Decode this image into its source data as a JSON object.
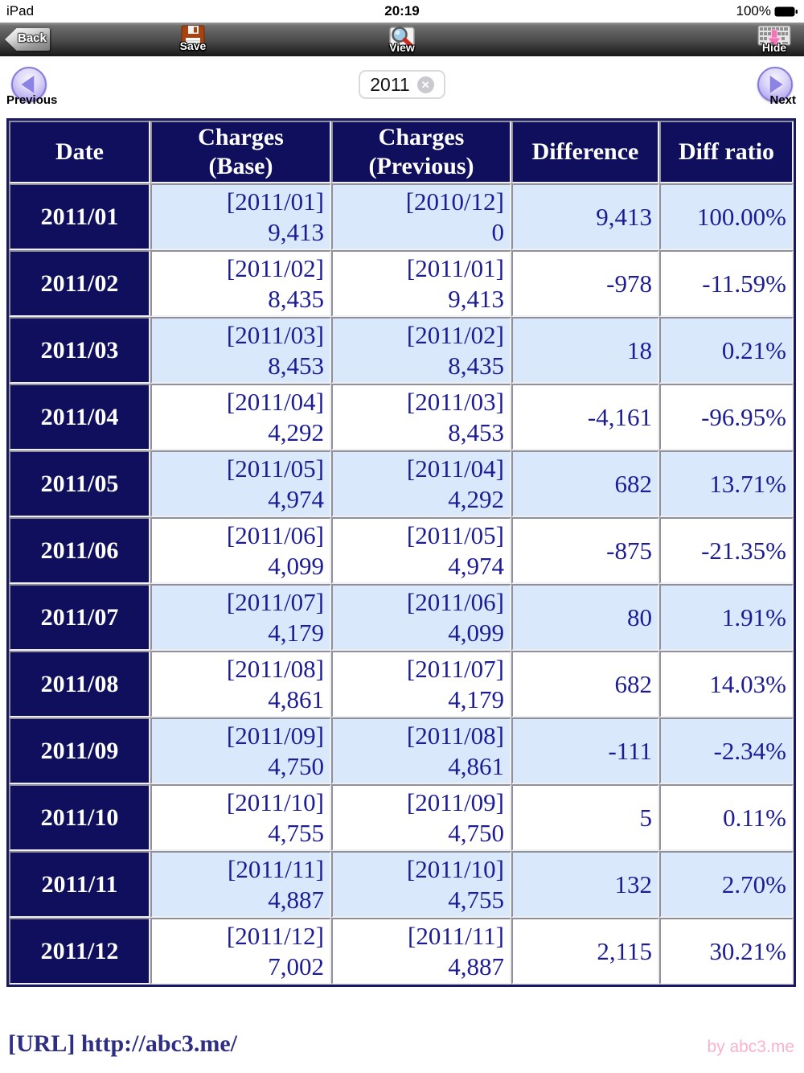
{
  "status_bar": {
    "carrier": "iPad",
    "time": "20:19",
    "battery_percent": "100%"
  },
  "toolbar": {
    "back_label": "Back",
    "save_label": "Save",
    "view_label": "View",
    "hide_label": "Hide"
  },
  "pager": {
    "previous_label": "Previous",
    "next_label": "Next",
    "year_value": "2011",
    "clear_glyph": "✕"
  },
  "table": {
    "columns": [
      {
        "line1": "Date",
        "line2": ""
      },
      {
        "line1": "Charges",
        "line2": "(Base)"
      },
      {
        "line1": "Charges",
        "line2": "(Previous)"
      },
      {
        "line1": "Difference",
        "line2": ""
      },
      {
        "line1": "Diff ratio",
        "line2": ""
      }
    ],
    "rows": [
      {
        "date": "2011/01",
        "base_tag": "[2011/01]",
        "base": "9,413",
        "prev_tag": "[2010/12]",
        "prev": "0",
        "diff": "9,413",
        "ratio": "100.00%"
      },
      {
        "date": "2011/02",
        "base_tag": "[2011/02]",
        "base": "8,435",
        "prev_tag": "[2011/01]",
        "prev": "9,413",
        "diff": "-978",
        "ratio": "-11.59%"
      },
      {
        "date": "2011/03",
        "base_tag": "[2011/03]",
        "base": "8,453",
        "prev_tag": "[2011/02]",
        "prev": "8,435",
        "diff": "18",
        "ratio": "0.21%"
      },
      {
        "date": "2011/04",
        "base_tag": "[2011/04]",
        "base": "4,292",
        "prev_tag": "[2011/03]",
        "prev": "8,453",
        "diff": "-4,161",
        "ratio": "-96.95%"
      },
      {
        "date": "2011/05",
        "base_tag": "[2011/05]",
        "base": "4,974",
        "prev_tag": "[2011/04]",
        "prev": "4,292",
        "diff": "682",
        "ratio": "13.71%"
      },
      {
        "date": "2011/06",
        "base_tag": "[2011/06]",
        "base": "4,099",
        "prev_tag": "[2011/05]",
        "prev": "4,974",
        "diff": "-875",
        "ratio": "-21.35%"
      },
      {
        "date": "2011/07",
        "base_tag": "[2011/07]",
        "base": "4,179",
        "prev_tag": "[2011/06]",
        "prev": "4,099",
        "diff": "80",
        "ratio": "1.91%"
      },
      {
        "date": "2011/08",
        "base_tag": "[2011/08]",
        "base": "4,861",
        "prev_tag": "[2011/07]",
        "prev": "4,179",
        "diff": "682",
        "ratio": "14.03%"
      },
      {
        "date": "2011/09",
        "base_tag": "[2011/09]",
        "base": "4,750",
        "prev_tag": "[2011/08]",
        "prev": "4,861",
        "diff": "-111",
        "ratio": "-2.34%"
      },
      {
        "date": "2011/10",
        "base_tag": "[2011/10]",
        "base": "4,755",
        "prev_tag": "[2011/09]",
        "prev": "4,750",
        "diff": "5",
        "ratio": "0.11%"
      },
      {
        "date": "2011/11",
        "base_tag": "[2011/11]",
        "base": "4,887",
        "prev_tag": "[2011/10]",
        "prev": "4,755",
        "diff": "132",
        "ratio": "2.70%"
      },
      {
        "date": "2011/12",
        "base_tag": "[2011/12]",
        "base": "7,002",
        "prev_tag": "[2011/11]",
        "prev": "4,887",
        "diff": "2,115",
        "ratio": "30.21%"
      }
    ]
  },
  "footer": {
    "url_label": "[URL] http://abc3.me/",
    "credit": "by abc3.me"
  },
  "colors": {
    "table_header_bg": "#0f0f5d",
    "row_highlight": "#d9e8fa",
    "cell_text": "#1c1c94",
    "footer_url": "#2e2e85",
    "credit_pink": "#f9b3cd",
    "button_purple": "#8d83e4",
    "save_icon_red": "#a8430f",
    "view_handle_red": "#cc2a1f",
    "hide_arrow_pink": "#f472b6"
  }
}
